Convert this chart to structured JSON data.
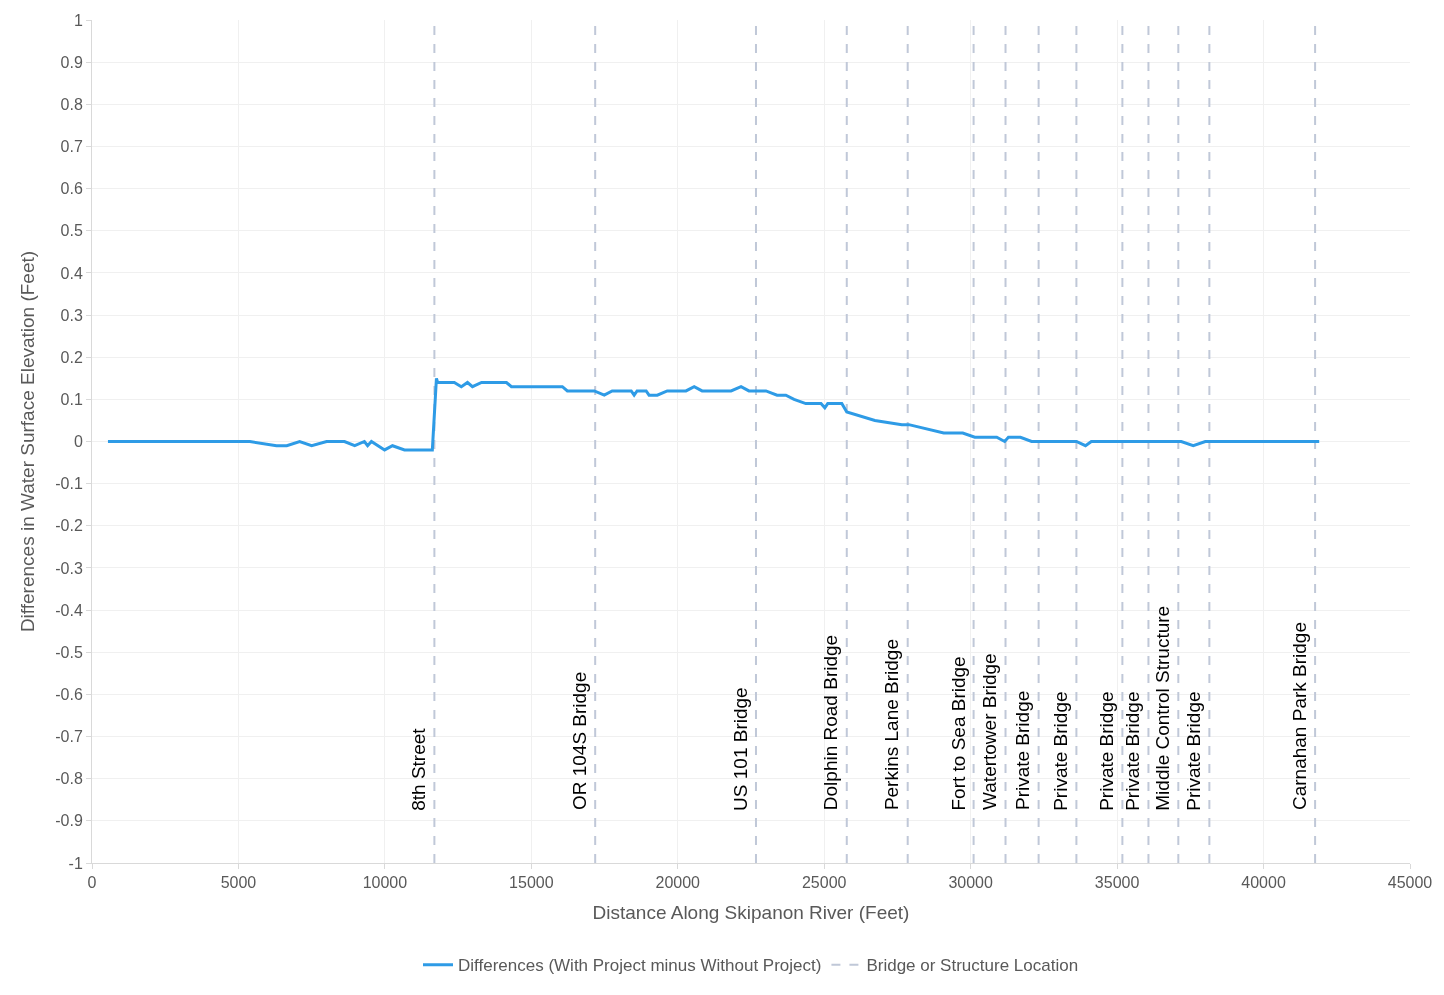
{
  "chart_data": {
    "type": "line",
    "xlabel": "Distance Along Skipanon River (Feet)",
    "ylabel": "Differences in Water Surface Elevation (Feet)",
    "xlim": [
      0,
      45000
    ],
    "xticks": [
      0,
      5000,
      10000,
      15000,
      20000,
      25000,
      30000,
      35000,
      40000,
      45000
    ],
    "ylim": [
      -1,
      1
    ],
    "yticks": [
      -1,
      -0.9,
      -0.8,
      -0.7,
      -0.6,
      -0.5,
      -0.4,
      -0.3,
      -0.2,
      -0.1,
      0,
      0.1,
      0.2,
      0.3,
      0.4,
      0.5,
      0.6,
      0.7,
      0.8,
      0.9,
      1
    ],
    "grid": true,
    "legend": "bottom",
    "marker": "none",
    "series": [
      {
        "name": "Differences (With Project minus Without Project)",
        "color": "#2e9be6",
        "line_style": "solid",
        "x": [
          545,
          5390,
          6300,
          6650,
          7090,
          7500,
          8010,
          8620,
          8970,
          9300,
          9410,
          9540,
          9990,
          10260,
          10670,
          11620,
          11760,
          11800,
          12370,
          12610,
          12820,
          12990,
          13300,
          14150,
          14320,
          16060,
          16230,
          17150,
          17490,
          17760,
          18410,
          18510,
          18610,
          18920,
          19020,
          19300,
          19640,
          20280,
          20560,
          20830,
          21820,
          22160,
          22430,
          23010,
          23390,
          23690,
          23970,
          24370,
          24890,
          25020,
          25120,
          25600,
          25770,
          26730,
          27650,
          27890,
          29080,
          29730,
          30140,
          30890,
          31160,
          31290,
          31700,
          32080,
          33610,
          33920,
          34120,
          37190,
          37600,
          38010,
          41900
        ],
        "values": [
          0,
          0,
          -0.01,
          -0.01,
          0,
          -0.01,
          0,
          0,
          -0.01,
          0,
          -0.01,
          0,
          -0.02,
          -0.01,
          -0.02,
          -0.02,
          0.15,
          0.14,
          0.14,
          0.13,
          0.14,
          0.13,
          0.14,
          0.14,
          0.13,
          0.13,
          0.12,
          0.12,
          0.11,
          0.12,
          0.12,
          0.11,
          0.12,
          0.12,
          0.11,
          0.11,
          0.12,
          0.12,
          0.13,
          0.12,
          0.12,
          0.13,
          0.12,
          0.12,
          0.11,
          0.11,
          0.1,
          0.09,
          0.09,
          0.08,
          0.09,
          0.09,
          0.07,
          0.05,
          0.04,
          0.04,
          0.02,
          0.02,
          0.01,
          0.01,
          0,
          0.01,
          0.01,
          0,
          0,
          -0.01,
          0,
          0,
          -0.01,
          0,
          0
        ]
      },
      {
        "name": "Bridge or Structure Location",
        "color": "#c0c8d8",
        "line_style": "dashed"
      }
    ],
    "ref_lines": [
      {
        "axis": "x",
        "value": 11690,
        "label": "8th Street"
      },
      {
        "axis": "x",
        "value": 17180,
        "label": "OR 104S Bridge"
      },
      {
        "axis": "x",
        "value": 22670,
        "label": "US 101 Bridge"
      },
      {
        "axis": "x",
        "value": 25770,
        "label": "Dolphin Road Bridge"
      },
      {
        "axis": "x",
        "value": 27850,
        "label": "Perkins Lane Bridge"
      },
      {
        "axis": "x",
        "value": 30100,
        "label": "Fort to Sea Bridge"
      },
      {
        "axis": "x",
        "value": 31190,
        "label": "Watertower Bridge"
      },
      {
        "axis": "x",
        "value": 32320,
        "label": "Private Bridge"
      },
      {
        "axis": "x",
        "value": 33610,
        "label": "Private Bridge"
      },
      {
        "axis": "x",
        "value": 35180,
        "label": "Private Bridge"
      },
      {
        "axis": "x",
        "value": 36070,
        "label": "Private Bridge"
      },
      {
        "axis": "x",
        "value": 37090,
        "label": "Middle Control Structure"
      },
      {
        "axis": "x",
        "value": 38150,
        "label": "Private Bridge"
      },
      {
        "axis": "x",
        "value": 41760,
        "label": "Carnahan Park Bridge"
      }
    ]
  }
}
